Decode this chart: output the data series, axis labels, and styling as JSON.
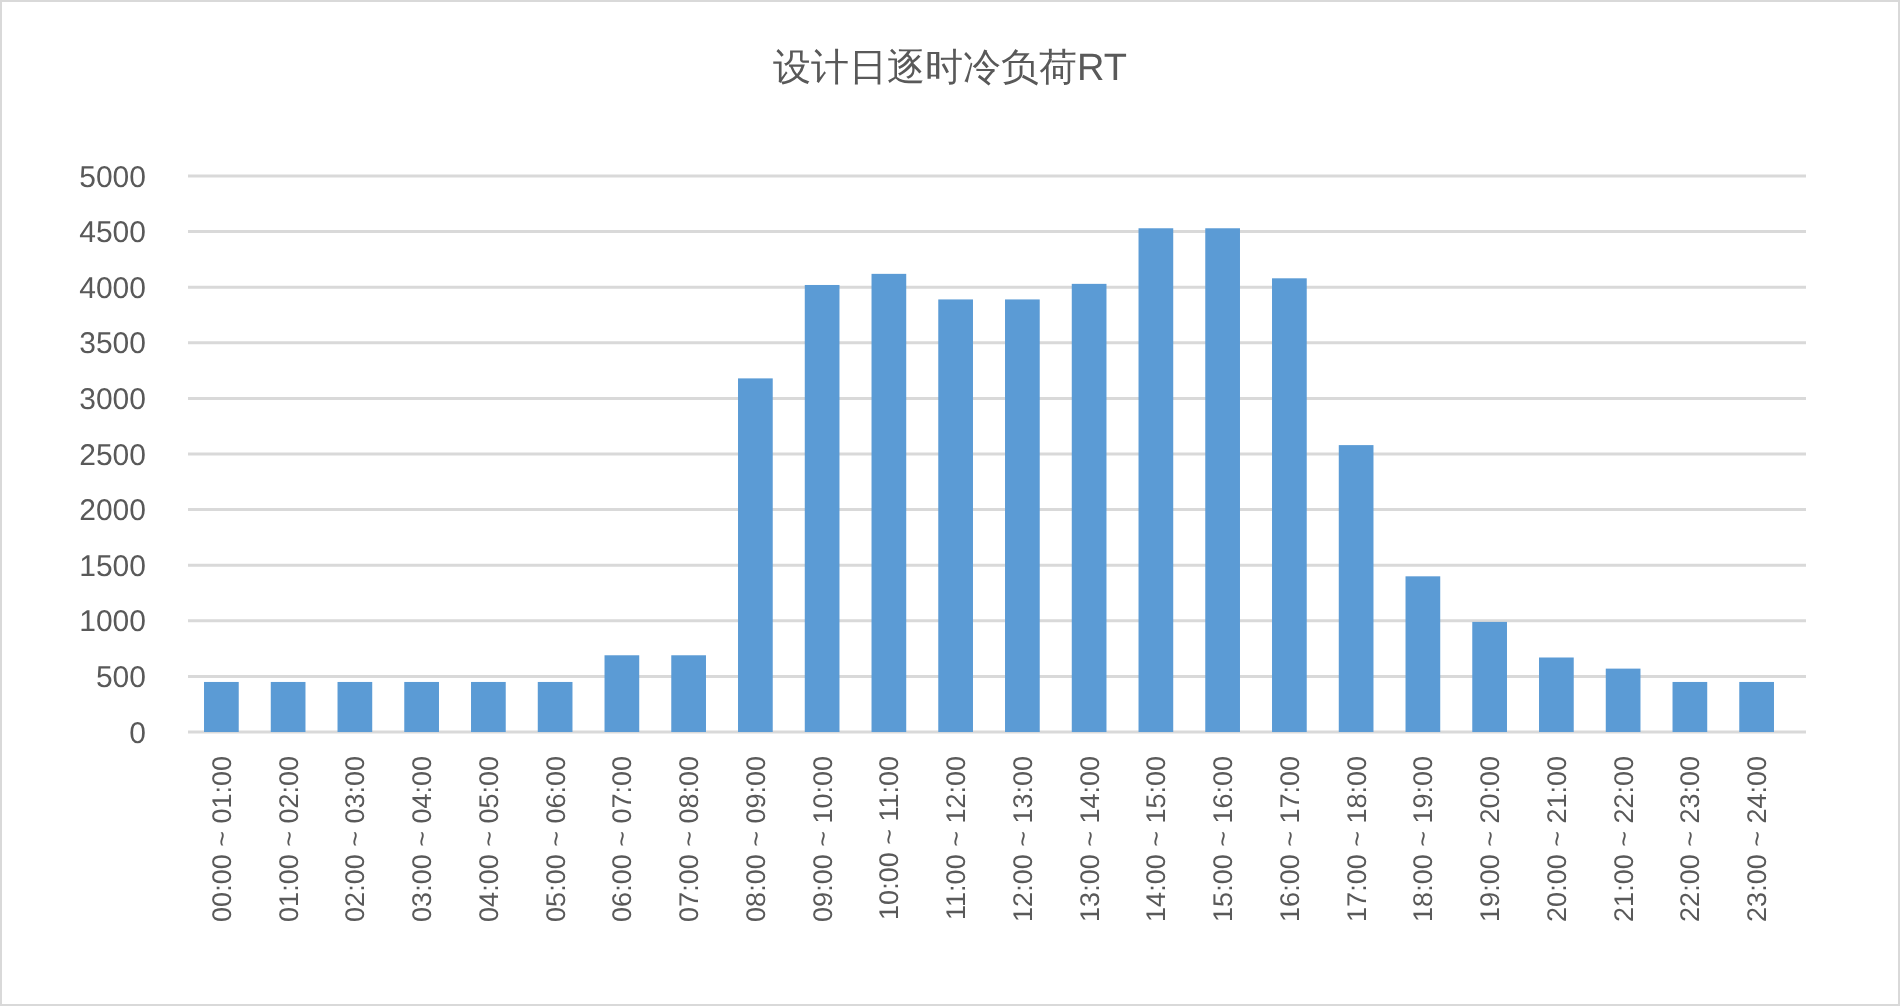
{
  "chart_data": {
    "type": "bar",
    "title": "设计日逐时冷负荷RT",
    "categories": [
      "00:00 ~ 01:00",
      "01:00 ~ 02:00",
      "02:00 ~ 03:00",
      "03:00 ~ 04:00",
      "04:00 ~ 05:00",
      "05:00 ~ 06:00",
      "06:00 ~ 07:00",
      "07:00 ~ 08:00",
      "08:00 ~ 09:00",
      "09:00 ~ 10:00",
      "10:00 ~ 11:00",
      "11:00 ~ 12:00",
      "12:00 ~ 13:00",
      "13:00 ~ 14:00",
      "14:00 ~ 15:00",
      "15:00 ~ 16:00",
      "16:00 ~ 17:00",
      "17:00 ~ 18:00",
      "18:00 ~ 19:00",
      "19:00 ~ 20:00",
      "20:00 ~ 21:00",
      "21:00 ~ 22:00",
      "22:00 ~ 23:00",
      "23:00 ~ 24:00"
    ],
    "values": [
      450,
      450,
      450,
      450,
      450,
      450,
      690,
      690,
      3180,
      4020,
      4120,
      3890,
      3890,
      4030,
      4530,
      4530,
      4080,
      2580,
      1400,
      990,
      670,
      570,
      450,
      450
    ],
    "color": "#5b9bd5",
    "ylim": [
      0,
      5000
    ],
    "yticks": [
      0,
      500,
      1000,
      1500,
      2000,
      2500,
      3000,
      3500,
      4000,
      4500,
      5000
    ],
    "grid": "y"
  }
}
